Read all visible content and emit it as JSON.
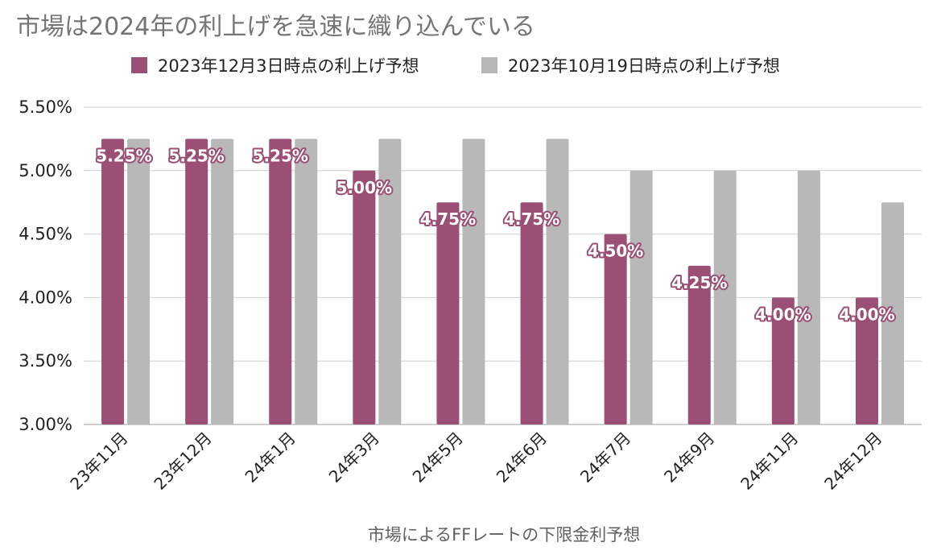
{
  "chart_data": {
    "type": "bar",
    "title": "市場は2024年の利上げを急速に織り込んでいる",
    "xlabel": "市場によるFFレートの下限金利予想",
    "ylabel": "",
    "categories": [
      "23年11月",
      "23年12月",
      "24年1月",
      "24年3月",
      "24年5月",
      "24年6月",
      "24年7月",
      "24年9月",
      "24年11月",
      "24年12月"
    ],
    "series": [
      {
        "name": "2023年12月3日時点の利上げ予想",
        "color": "#9b4f75",
        "values": [
          5.25,
          5.25,
          5.25,
          5.0,
          4.75,
          4.75,
          4.5,
          4.25,
          4.0,
          4.0
        ],
        "labels": [
          "5.25%",
          "5.25%",
          "5.25%",
          "5.00%",
          "4.75%",
          "4.75%",
          "4.50%",
          "4.25%",
          "4.00%",
          "4.00%"
        ]
      },
      {
        "name": "2023年10月19日時点の利上げ予想",
        "color": "#b8b8b8",
        "values": [
          5.25,
          5.25,
          5.25,
          5.25,
          5.25,
          5.25,
          5.0,
          5.0,
          5.0,
          4.75
        ]
      }
    ],
    "ylim": [
      3.0,
      5.5
    ],
    "yticks": [
      5.5,
      5.0,
      4.5,
      4.0,
      3.5,
      3.0
    ],
    "ytick_labels": [
      "5.50%",
      "5.00%",
      "4.50%",
      "4.00%",
      "3.50%",
      "3.00%"
    ],
    "grid": true,
    "legend_position": "top"
  }
}
